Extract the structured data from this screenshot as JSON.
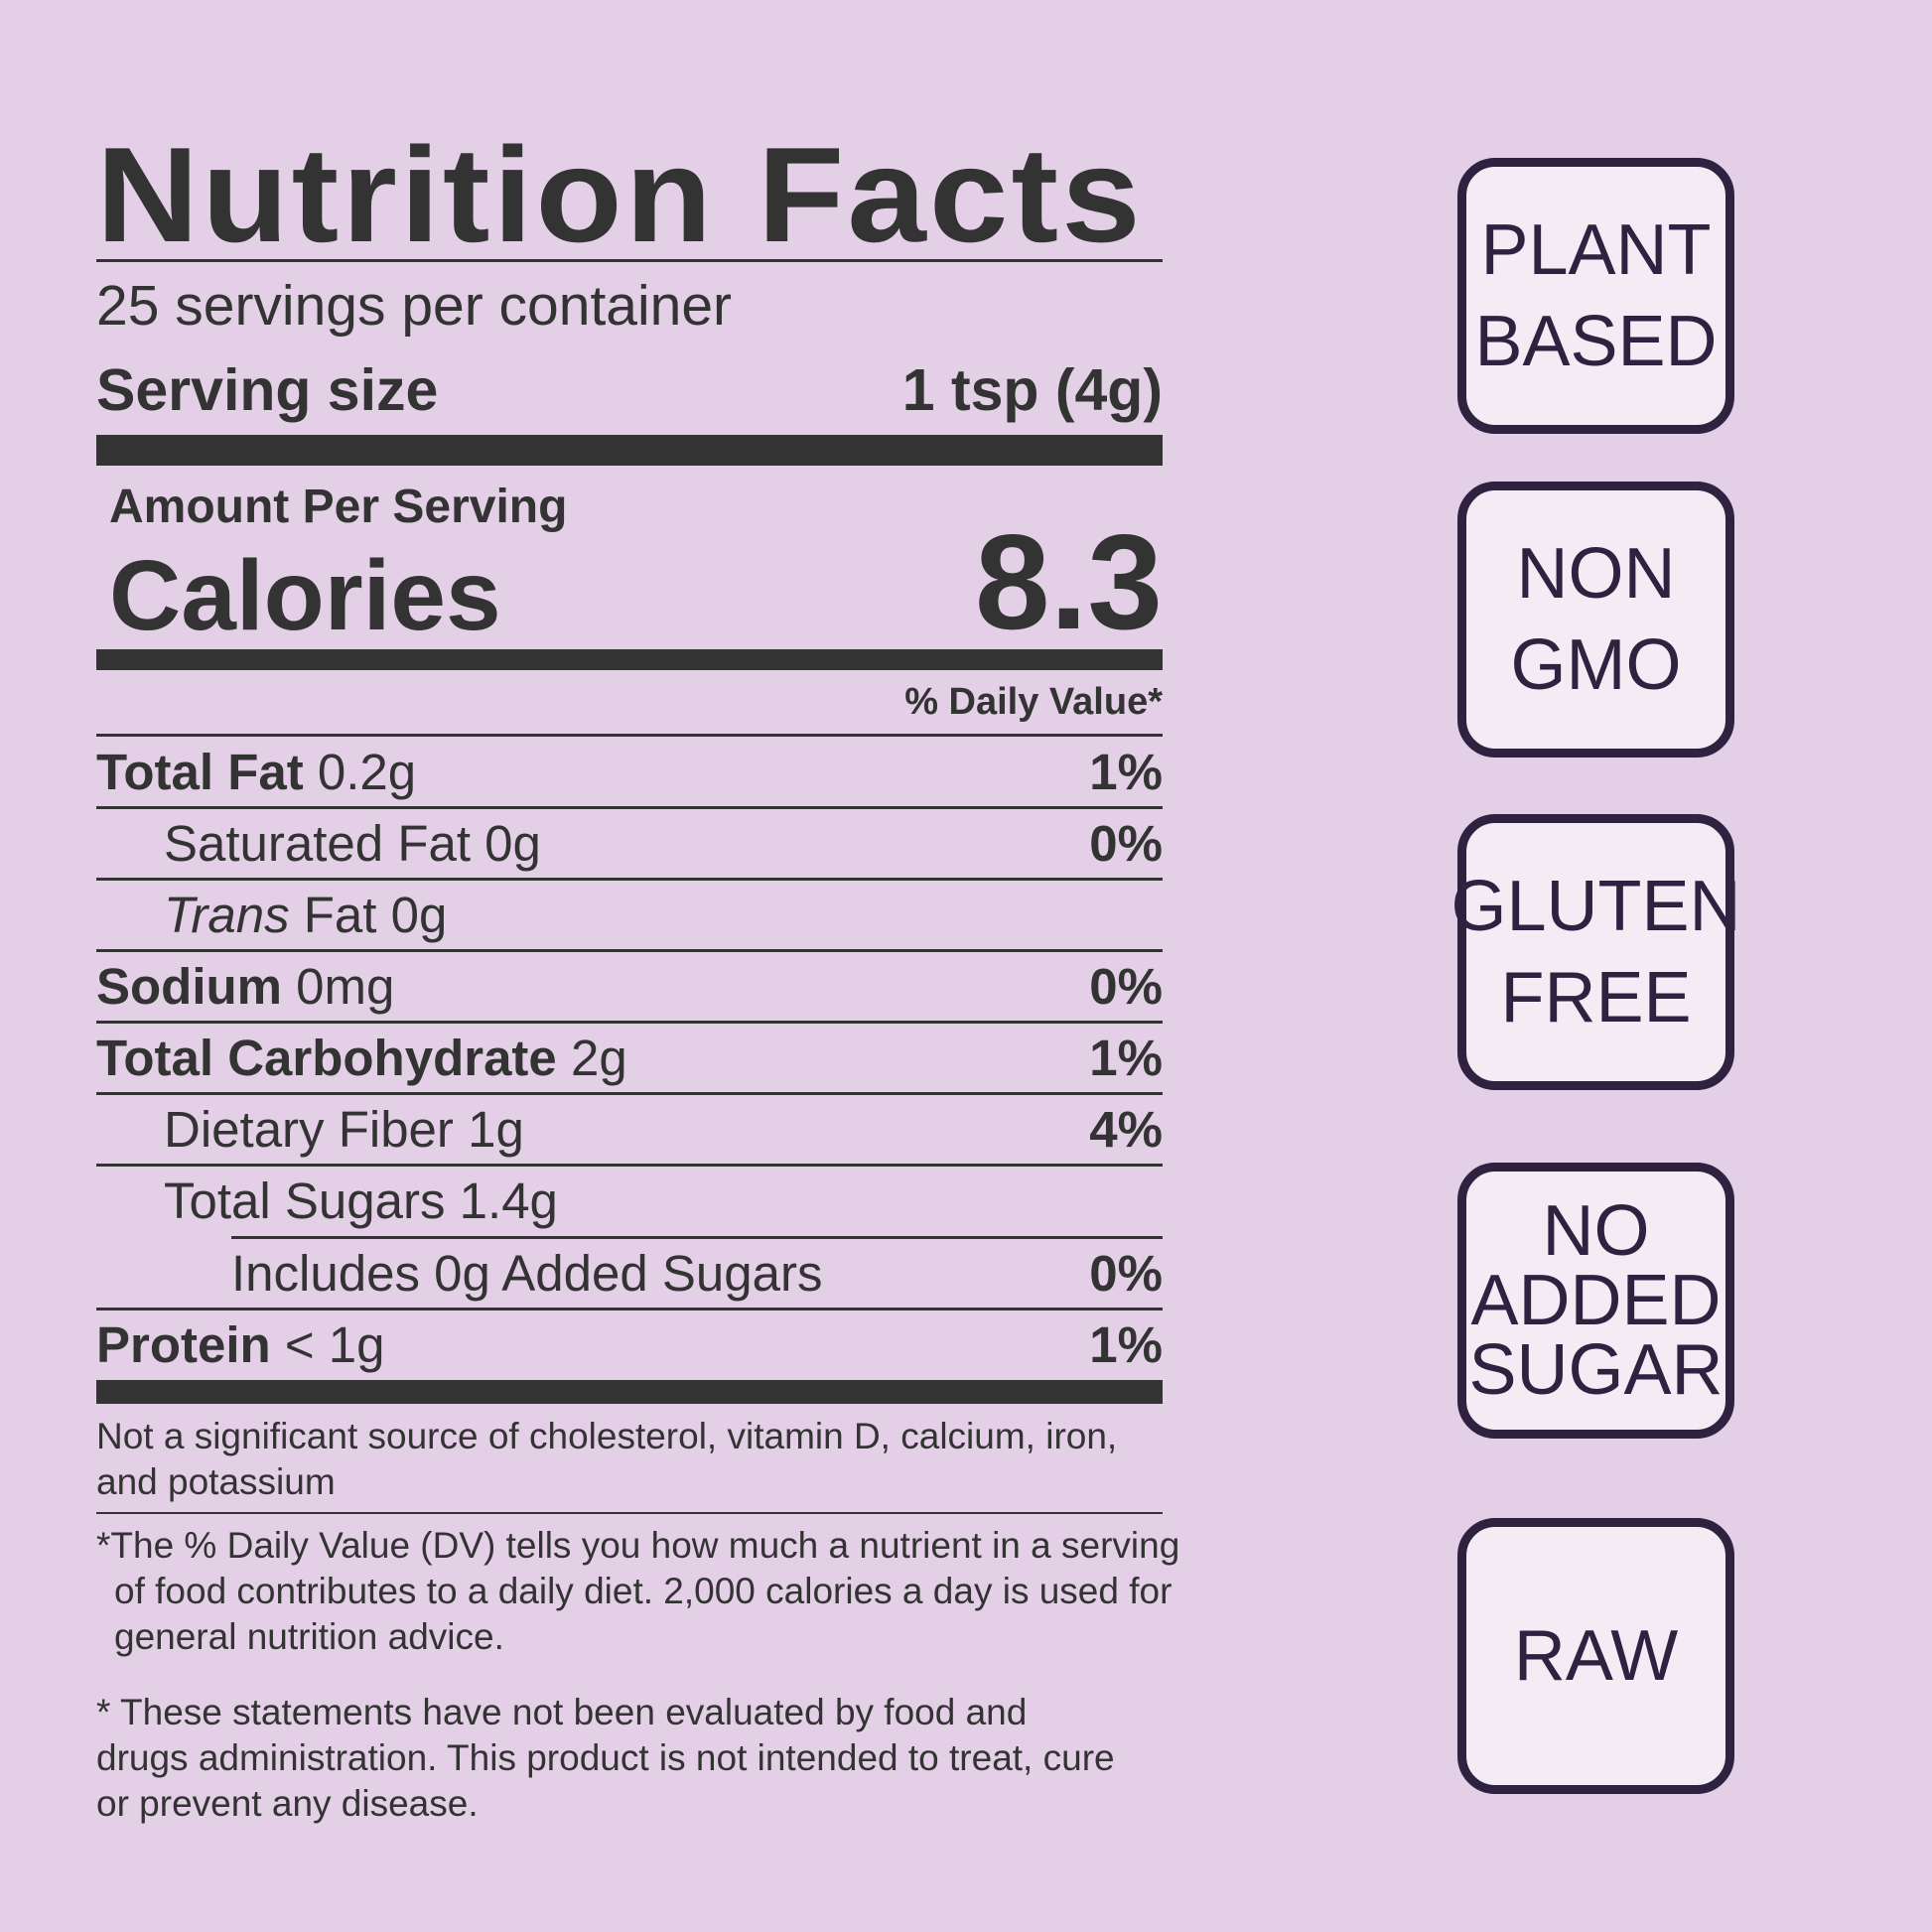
{
  "label": {
    "title": "Nutrition Facts",
    "servings_per_container": "25 servings per container",
    "serving_size_label": "Serving size",
    "serving_size_value": "1 tsp (4g)",
    "amount_per_serving": "Amount Per Serving",
    "calories_label": "Calories",
    "calories_value": "8.3",
    "daily_value_header": "% Daily Value*",
    "rows": [
      {
        "name": "Total Fat",
        "amount": " 0.2g",
        "dv": "1%"
      },
      {
        "name": "Saturated Fat 0g",
        "amount": "",
        "dv": "0%"
      },
      {
        "name": "Trans",
        "amount": " Fat 0g",
        "dv": ""
      },
      {
        "name": "Sodium",
        "amount": " 0mg",
        "dv": "0%"
      },
      {
        "name": "Total Carbohydrate",
        "amount": " 2g",
        "dv": "1%"
      },
      {
        "name": "Dietary Fiber 1g",
        "amount": "",
        "dv": "4%"
      },
      {
        "name": "Total Sugars 1.4g",
        "amount": "",
        "dv": ""
      },
      {
        "name": "Includes 0g Added Sugars",
        "amount": "",
        "dv": "0%"
      },
      {
        "name": "Protein",
        "amount": " < 1g",
        "dv": "1%"
      }
    ],
    "not_significant": "Not a significant source of cholesterol, vitamin D, calcium, iron, and potassium",
    "dv_footnote": "*The % Daily Value (DV) tells you how much a nutrient in a serving of food contributes to a daily diet. 2,000 calories a day is used for general nutrition advice.",
    "disclaimer": "* These statements have not been evaluated by food and drugs administration. This product is not intended to treat, cure or prevent any disease."
  },
  "badges": [
    {
      "line1": "PLANT",
      "line2": "BASED"
    },
    {
      "line1": "NON",
      "line2": "GMO"
    },
    {
      "line1": "GLUTEN",
      "line2": "FREE"
    },
    {
      "line1": "NO",
      "line2": "ADDED",
      "line3": "SUGAR"
    },
    {
      "line1": "RAW"
    }
  ],
  "colors": {
    "background": "#e3cfe6",
    "text": "#333333",
    "badge_border": "#2e2240",
    "badge_fill": "#f3ecf5"
  }
}
